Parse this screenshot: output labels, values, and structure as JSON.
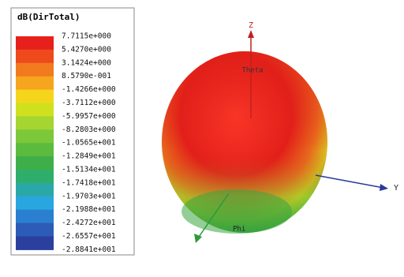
{
  "legend": {
    "title": "dB(DirTotal)",
    "labels": [
      "7.7115e+000",
      "5.4270e+000",
      "3.1424e+000",
      "8.5790e-001",
      "-1.4266e+000",
      "-3.7112e+000",
      "-5.9957e+000",
      "-8.2803e+000",
      "-1.0565e+001",
      "-1.2849e+001",
      "-1.5134e+001",
      "-1.7418e+001",
      "-1.9703e+001",
      "-2.1988e+001",
      "-2.4272e+001",
      "-2.6557e+001",
      "-2.8841e+001"
    ],
    "colors": [
      "#e8201c",
      "#ee4a1c",
      "#f27a1e",
      "#f6a51e",
      "#f5d51c",
      "#cfe01e",
      "#a4d530",
      "#7cc83a",
      "#5bbb3e",
      "#3fae48",
      "#2eae6a",
      "#2aa8a8",
      "#29a6df",
      "#2b7fd0",
      "#2c5bb8",
      "#2a3f9e"
    ]
  },
  "axes": {
    "z": "Z",
    "theta": "Theta",
    "y": "Y",
    "phi": "Phi"
  }
}
